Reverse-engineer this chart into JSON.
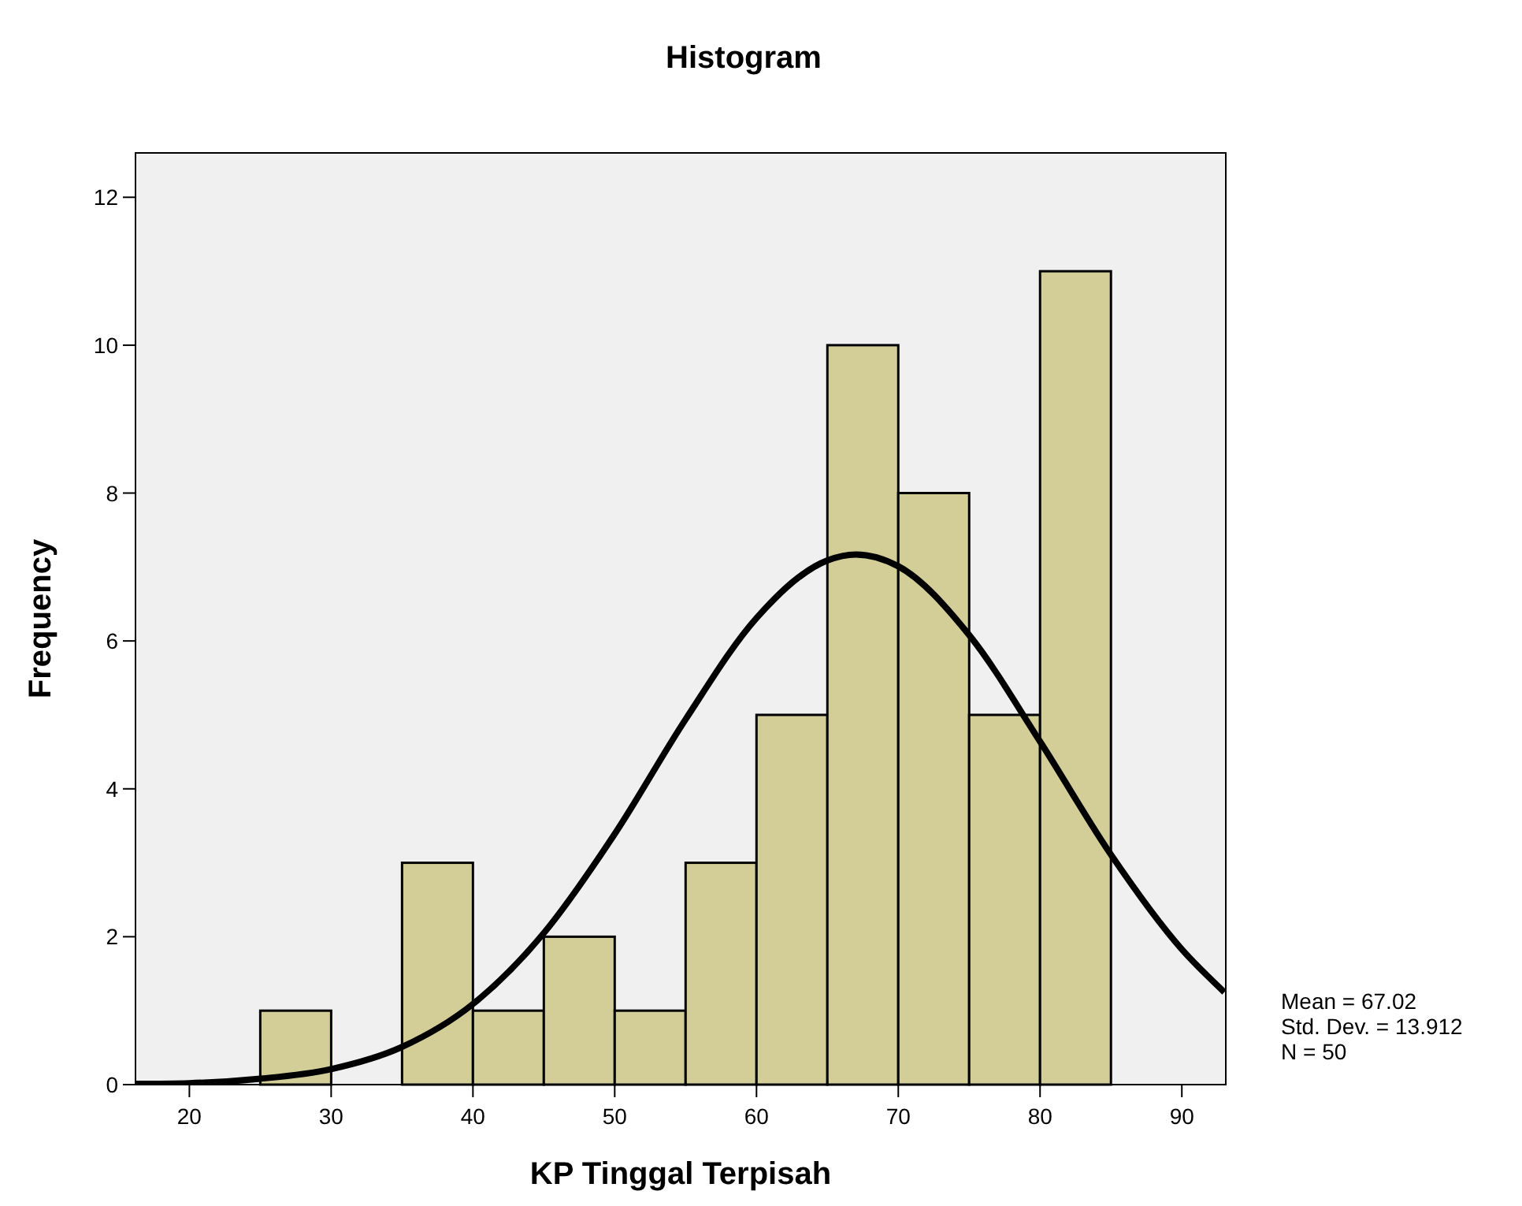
{
  "chart_data": {
    "type": "histogram",
    "title": "Histogram",
    "xlabel": "KP Tinggal Terpisah",
    "ylabel": "Frequency",
    "bins": [
      25,
      30,
      35,
      40,
      45,
      50,
      55,
      60,
      65,
      70,
      75,
      80,
      85
    ],
    "values": [
      1,
      0,
      3,
      1,
      2,
      1,
      3,
      5,
      10,
      8,
      5,
      11
    ],
    "color": "#d3ce97",
    "series": [
      {
        "type": "line",
        "color": "#000000",
        "x": [
          16.2,
          20,
          25,
          30,
          35,
          40,
          45,
          50,
          55,
          60,
          65,
          67,
          70,
          75,
          80,
          85,
          90,
          93
        ],
        "values": [
          0.01,
          0.02,
          0.08,
          0.21,
          0.51,
          1.09,
          2.05,
          3.39,
          4.94,
          6.31,
          7.09,
          7.17,
          7.01,
          6.08,
          4.64,
          3.11,
          1.83,
          1.25
        ]
      }
    ],
    "xlim": [
      16.2,
      93.1
    ],
    "ylim": [
      0,
      12.6
    ],
    "xticks": [
      20,
      30,
      40,
      50,
      60,
      70,
      80,
      90
    ],
    "yticks": [
      0,
      2,
      4,
      6,
      8,
      10,
      12
    ],
    "grid": false,
    "annotations": [
      "Mean = 67.02",
      "Std. Dev. = 13.912",
      "N = 50"
    ]
  }
}
